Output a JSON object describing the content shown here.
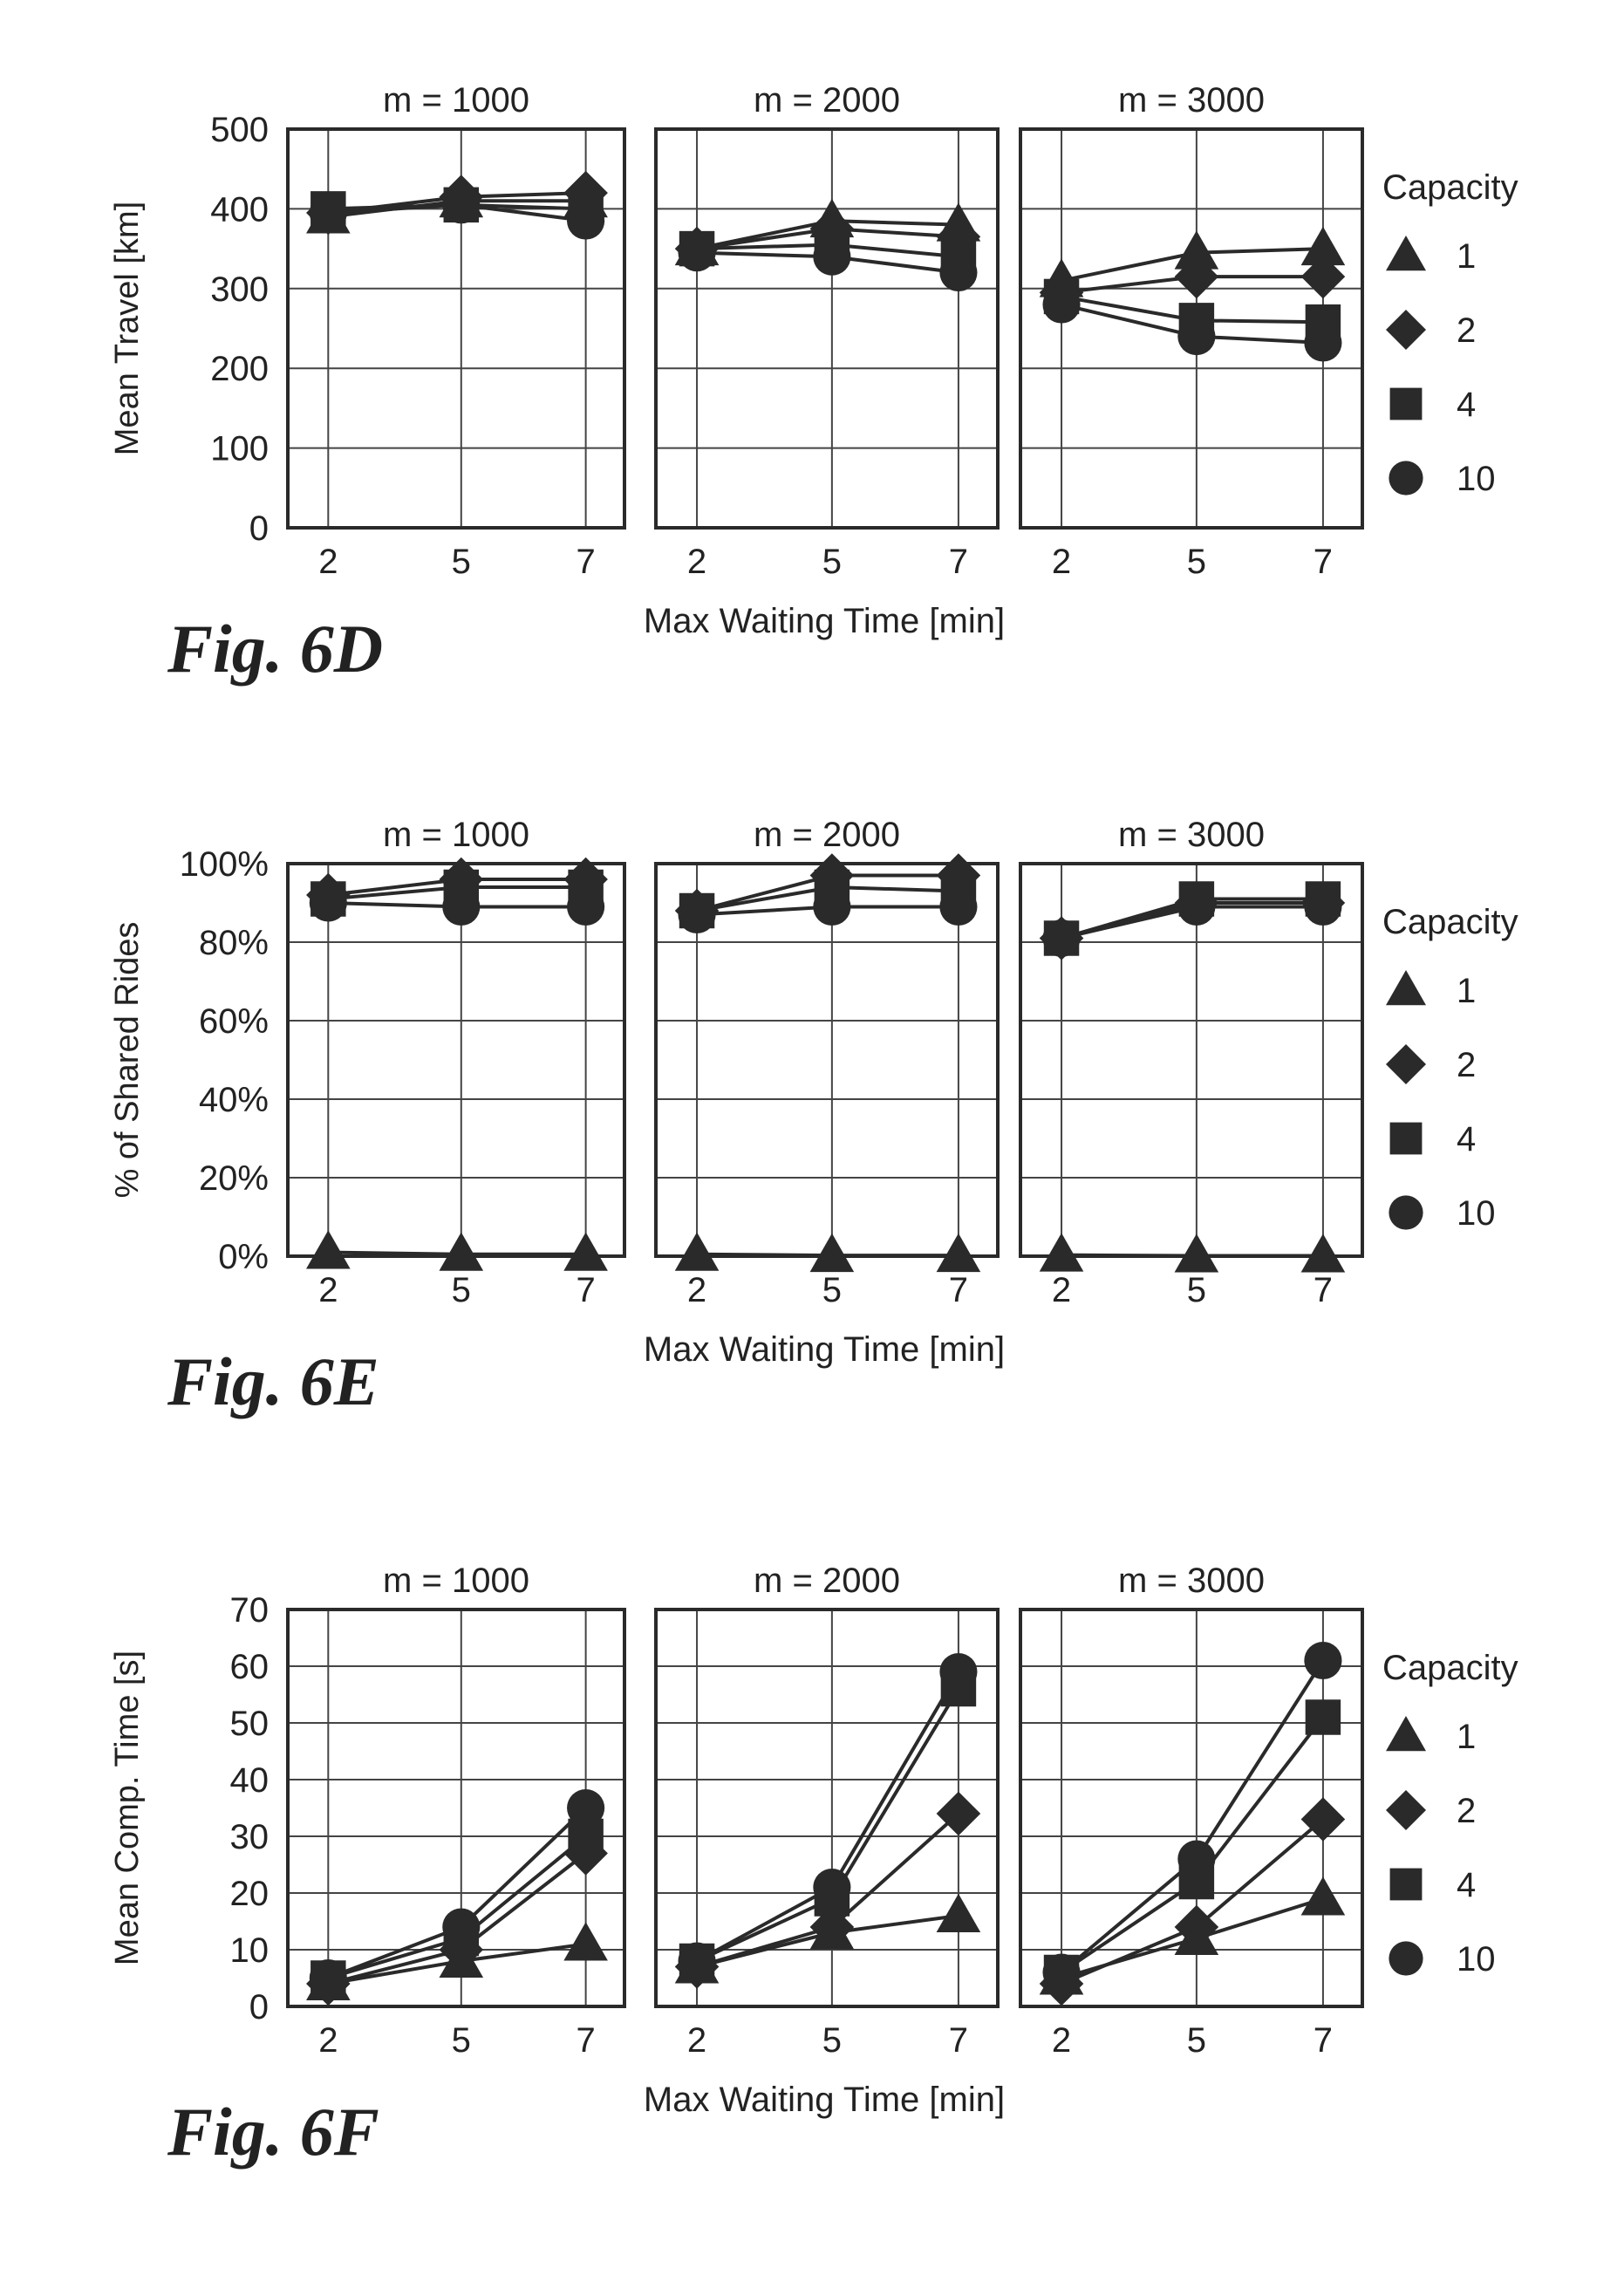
{
  "legend_title": "Capacity",
  "capacities": [
    "1",
    "2",
    "4",
    "10"
  ],
  "x_ticks": [
    2,
    5,
    7
  ],
  "chart_data": [
    {
      "type": "line",
      "figure_label": "Fig. 6D",
      "ylabel": "Mean Travel [km]",
      "xlabel": "Max Waiting Time [min]",
      "ylim": [
        0,
        500
      ],
      "y_ticks": [
        0,
        100,
        200,
        300,
        400,
        500
      ],
      "y_tick_labels": [
        "0",
        "100",
        "200",
        "300",
        "400",
        "500"
      ],
      "grid": true,
      "legend": "right",
      "panels": [
        {
          "title": "m = 1000",
          "x": [
            2,
            5,
            7
          ],
          "series": [
            {
              "name": "1",
              "values": [
                390,
                410,
                410
              ]
            },
            {
              "name": "2",
              "values": [
                395,
                415,
                420
              ]
            },
            {
              "name": "4",
              "values": [
                400,
                405,
                400
              ]
            },
            {
              "name": "10",
              "values": [
                395,
                405,
                385
              ]
            }
          ]
        },
        {
          "title": "m = 2000",
          "x": [
            2,
            5,
            7
          ],
          "series": [
            {
              "name": "1",
              "values": [
                350,
                385,
                380
              ]
            },
            {
              "name": "2",
              "values": [
                350,
                375,
                365
              ]
            },
            {
              "name": "4",
              "values": [
                350,
                355,
                340
              ]
            },
            {
              "name": "10",
              "values": [
                345,
                340,
                320
              ]
            }
          ]
        },
        {
          "title": "m = 3000",
          "x": [
            2,
            5,
            7
          ],
          "series": [
            {
              "name": "1",
              "values": [
                310,
                345,
                350
              ]
            },
            {
              "name": "2",
              "values": [
                295,
                315,
                315
              ]
            },
            {
              "name": "4",
              "values": [
                290,
                260,
                258
              ]
            },
            {
              "name": "10",
              "values": [
                280,
                240,
                232
              ]
            }
          ]
        }
      ]
    },
    {
      "type": "line",
      "figure_label": "Fig. 6E",
      "ylabel": "% of Shared Rides",
      "xlabel": "Max Waiting Time [min]",
      "ylim": [
        0,
        100
      ],
      "y_ticks": [
        0,
        20,
        40,
        60,
        80,
        100
      ],
      "y_tick_labels": [
        "0%",
        "20%",
        "40%",
        "60%",
        "80%",
        "100%"
      ],
      "grid": true,
      "legend": "right",
      "panels": [
        {
          "title": "m = 1000",
          "x": [
            2,
            5,
            7
          ],
          "series": [
            {
              "name": "1",
              "values": [
                1,
                0.5,
                0.5
              ]
            },
            {
              "name": "2",
              "values": [
                92,
                96,
                96
              ]
            },
            {
              "name": "4",
              "values": [
                91,
                94,
                94
              ]
            },
            {
              "name": "10",
              "values": [
                90,
                89,
                89
              ]
            }
          ]
        },
        {
          "title": "m = 2000",
          "x": [
            2,
            5,
            7
          ],
          "series": [
            {
              "name": "1",
              "values": [
                0.5,
                0.2,
                0.2
              ]
            },
            {
              "name": "2",
              "values": [
                88,
                97,
                97
              ]
            },
            {
              "name": "4",
              "values": [
                88,
                94,
                93
              ]
            },
            {
              "name": "10",
              "values": [
                87,
                89,
                89
              ]
            }
          ]
        },
        {
          "title": "m = 3000",
          "x": [
            2,
            5,
            7
          ],
          "series": [
            {
              "name": "1",
              "values": [
                0.3,
                0.1,
                0.1
              ]
            },
            {
              "name": "2",
              "values": [
                81,
                90,
                90
              ]
            },
            {
              "name": "4",
              "values": [
                81,
                91,
                91
              ]
            },
            {
              "name": "10",
              "values": [
                81,
                89,
                89
              ]
            }
          ]
        }
      ]
    },
    {
      "type": "line",
      "figure_label": "Fig. 6F",
      "ylabel": "Mean Comp. Time [s]",
      "xlabel": "Max Waiting Time [min]",
      "ylim": [
        0,
        70
      ],
      "y_ticks": [
        0,
        10,
        20,
        30,
        40,
        50,
        60,
        70
      ],
      "y_tick_labels": [
        "0",
        "10",
        "20",
        "30",
        "40",
        "50",
        "60",
        "70"
      ],
      "grid": true,
      "legend": "right",
      "panels": [
        {
          "title": "m = 1000",
          "x": [
            2,
            5,
            7
          ],
          "series": [
            {
              "name": "1",
              "values": [
                4,
                8,
                11
              ]
            },
            {
              "name": "2",
              "values": [
                4,
                10,
                27
              ]
            },
            {
              "name": "4",
              "values": [
                5,
                12,
                30
              ]
            },
            {
              "name": "10",
              "values": [
                5,
                14,
                35
              ]
            }
          ]
        },
        {
          "title": "m = 2000",
          "x": [
            2,
            5,
            7
          ],
          "series": [
            {
              "name": "1",
              "values": [
                7,
                13,
                16
              ]
            },
            {
              "name": "2",
              "values": [
                7,
                14,
                34
              ]
            },
            {
              "name": "4",
              "values": [
                8,
                19,
                56
              ]
            },
            {
              "name": "10",
              "values": [
                8,
                21,
                59
              ]
            }
          ]
        },
        {
          "title": "m = 3000",
          "x": [
            2,
            5,
            7
          ],
          "series": [
            {
              "name": "1",
              "values": [
                5,
                12,
                19
              ]
            },
            {
              "name": "2",
              "values": [
                4,
                14,
                33
              ]
            },
            {
              "name": "4",
              "values": [
                6,
                22,
                51
              ]
            },
            {
              "name": "10",
              "values": [
                6,
                26,
                61
              ]
            }
          ]
        }
      ]
    }
  ]
}
